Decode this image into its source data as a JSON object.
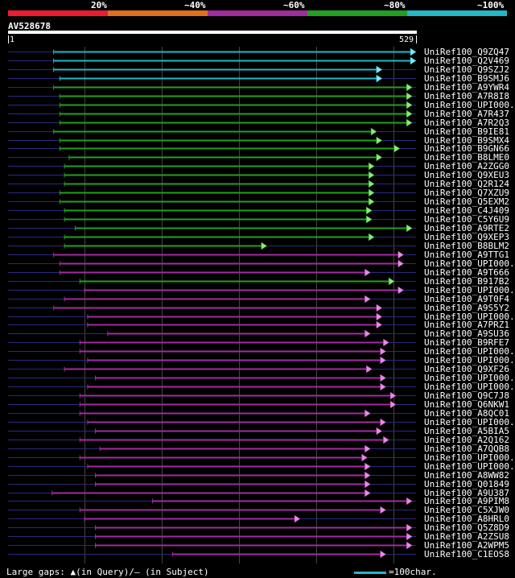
{
  "identity_legend": [
    {
      "label": "20%",
      "color": "#ee1c2e"
    },
    {
      "label": "~40%",
      "color": "#e07020"
    },
    {
      "label": "~60%",
      "color": "#a02c9e"
    },
    {
      "label": "~80%",
      "color": "#22a020"
    },
    {
      "label": "~100%",
      "color": "#22b8c8"
    }
  ],
  "query": {
    "id": "AV528678",
    "start_label": "1",
    "end_label": "529",
    "length": 529
  },
  "footer": {
    "text": "Large gaps: ▲(in Query)/— (in Subject)",
    "scale_text": "=100char."
  },
  "hits": [
    {
      "name": "UniRef100_Q9ZQ47",
      "color": "cyan",
      "start": 60,
      "end": 529
    },
    {
      "name": "UniRef100_Q2V469",
      "color": "cyan",
      "start": 60,
      "end": 529
    },
    {
      "name": "UniRef100_Q9SZJ2",
      "color": "cyan",
      "start": 60,
      "end": 485
    },
    {
      "name": "UniRef100_B9SMJ6",
      "color": "cyan",
      "start": 68,
      "end": 485
    },
    {
      "name": "UniRef100_A9YWR4",
      "color": "green",
      "start": 60,
      "end": 524
    },
    {
      "name": "UniRef100_A7R8I8",
      "color": "green",
      "start": 68,
      "end": 524
    },
    {
      "name": "UniRef100_UPI000...",
      "color": "green",
      "start": 68,
      "end": 524
    },
    {
      "name": "UniRef100_A7R437",
      "color": "green",
      "start": 68,
      "end": 524
    },
    {
      "name": "UniRef100_A7R2Q3",
      "color": "green",
      "start": 68,
      "end": 524
    },
    {
      "name": "UniRef100_B9IE81",
      "color": "green",
      "start": 60,
      "end": 478
    },
    {
      "name": "UniRef100_B9SMX4",
      "color": "green",
      "start": 68,
      "end": 485
    },
    {
      "name": "UniRef100_B9GN66",
      "color": "green",
      "start": 68,
      "end": 508
    },
    {
      "name": "UniRef100_B8LME0",
      "color": "green",
      "start": 80,
      "end": 485
    },
    {
      "name": "UniRef100_A2ZGG0",
      "color": "green",
      "start": 74,
      "end": 475
    },
    {
      "name": "UniRef100_Q9XEU3",
      "color": "green",
      "start": 74,
      "end": 475
    },
    {
      "name": "UniRef100_Q2R124",
      "color": "green",
      "start": 74,
      "end": 475
    },
    {
      "name": "UniRef100_Q7XZU9",
      "color": "green",
      "start": 68,
      "end": 475
    },
    {
      "name": "UniRef100_Q5EXM2",
      "color": "green",
      "start": 68,
      "end": 475
    },
    {
      "name": "UniRef100_C4J409",
      "color": "green",
      "start": 74,
      "end": 472
    },
    {
      "name": "UniRef100_C5Y6U9",
      "color": "green",
      "start": 74,
      "end": 472
    },
    {
      "name": "UniRef100_A9RTE2",
      "color": "green",
      "start": 88,
      "end": 524
    },
    {
      "name": "UniRef100_Q9XEP3",
      "color": "green",
      "start": 74,
      "end": 475
    },
    {
      "name": "UniRef100_B8BLM2",
      "color": "green",
      "start": 74,
      "end": 336
    },
    {
      "name": "UniRef100_A9TTG1",
      "color": "magenta",
      "start": 60,
      "end": 513
    },
    {
      "name": "UniRef100_UPI000...",
      "color": "magenta",
      "start": 68,
      "end": 513
    },
    {
      "name": "UniRef100_A9T666",
      "color": "magenta",
      "start": 68,
      "end": 470
    },
    {
      "name": "UniRef100_B917B2",
      "color": "green",
      "start": 94,
      "end": 501
    },
    {
      "name": "UniRef100_UPI000...",
      "color": "magenta",
      "start": 100,
      "end": 513
    },
    {
      "name": "UniRef100_A9T0F4",
      "color": "magenta",
      "start": 74,
      "end": 470
    },
    {
      "name": "UniRef100_A9S5Y2",
      "color": "magenta",
      "start": 60,
      "end": 485
    },
    {
      "name": "UniRef100_UPI000...",
      "color": "magenta",
      "start": 104,
      "end": 485
    },
    {
      "name": "UniRef100_A7PRZ1",
      "color": "magenta",
      "start": 104,
      "end": 485
    },
    {
      "name": "UniRef100_A9SU36",
      "color": "magenta",
      "start": 130,
      "end": 470
    },
    {
      "name": "UniRef100_B9RFE7",
      "color": "magenta",
      "start": 94,
      "end": 494
    },
    {
      "name": "UniRef100_UPI000...",
      "color": "magenta",
      "start": 94,
      "end": 490
    },
    {
      "name": "UniRef100_UPI000...",
      "color": "magenta",
      "start": 104,
      "end": 490
    },
    {
      "name": "UniRef100_Q9XF26",
      "color": "magenta",
      "start": 74,
      "end": 472
    },
    {
      "name": "UniRef100_UPI000...",
      "color": "magenta",
      "start": 114,
      "end": 490
    },
    {
      "name": "UniRef100_UPI000...",
      "color": "magenta",
      "start": 104,
      "end": 490
    },
    {
      "name": "UniRef100_Q9C7J8",
      "color": "magenta",
      "start": 94,
      "end": 503
    },
    {
      "name": "UniRef100_Q6NKW1",
      "color": "magenta",
      "start": 94,
      "end": 503
    },
    {
      "name": "UniRef100_A8QC01",
      "color": "magenta",
      "start": 94,
      "end": 470
    },
    {
      "name": "UniRef100_UPI000...",
      "color": "magenta",
      "start": 104,
      "end": 490
    },
    {
      "name": "UniRef100_A5BIA5",
      "color": "magenta",
      "start": 114,
      "end": 485
    },
    {
      "name": "UniRef100_A2Q162",
      "color": "magenta",
      "start": 94,
      "end": 494
    },
    {
      "name": "UniRef100_A7QQB8",
      "color": "magenta",
      "start": 120,
      "end": 470
    },
    {
      "name": "UniRef100_UPI000...",
      "color": "magenta",
      "start": 94,
      "end": 466
    },
    {
      "name": "UniRef100_UPI000...",
      "color": "magenta",
      "start": 104,
      "end": 470
    },
    {
      "name": "UniRef100_A8WW82",
      "color": "magenta",
      "start": 114,
      "end": 470
    },
    {
      "name": "UniRef100_Q01849",
      "color": "magenta",
      "start": 114,
      "end": 470
    },
    {
      "name": "UniRef100_A9U387",
      "color": "magenta",
      "start": 58,
      "end": 470
    },
    {
      "name": "UniRef100_A9PIM8",
      "color": "magenta",
      "start": 188,
      "end": 524
    },
    {
      "name": "UniRef100_C5XJW0",
      "color": "magenta",
      "start": 94,
      "end": 490
    },
    {
      "name": "UniRef100_A8HRL0",
      "color": "magenta",
      "start": 100,
      "end": 379
    },
    {
      "name": "UniRef100_Q5Z8D9",
      "color": "magenta",
      "start": 114,
      "end": 524
    },
    {
      "name": "UniRef100_A2ZSU8",
      "color": "magenta",
      "start": 114,
      "end": 524
    },
    {
      "name": "UniRef100_A2WPM5",
      "color": "magenta",
      "start": 114,
      "end": 524
    },
    {
      "name": "UniRef100_C1EOS8",
      "color": "magenta",
      "start": 214,
      "end": 490
    }
  ],
  "colors": {
    "cyan": "#22b8c8",
    "green": "#22a020",
    "magenta": "#a02c9e",
    "arrow_cyan": "#7fe6f0",
    "arrow_green": "#8fe67f",
    "arrow_magenta": "#e08fe0",
    "subject_line": "#2a2a7a",
    "grid": "#444444"
  }
}
